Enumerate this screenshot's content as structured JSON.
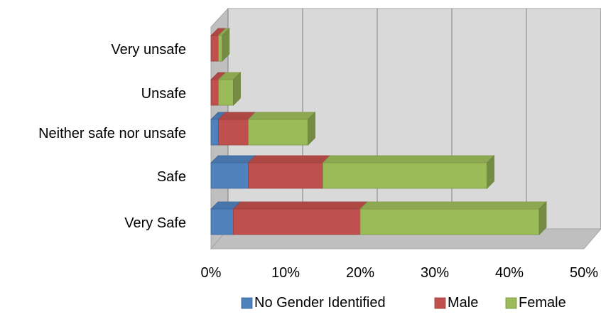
{
  "chart_data": {
    "type": "bar",
    "orientation": "horizontal",
    "stacked": true,
    "three_d": true,
    "categories": [
      "Very Safe",
      "Safe",
      "Neither safe nor unsafe",
      "Unsafe",
      "Very unsafe"
    ],
    "series": [
      {
        "name": "No Gender Identified",
        "values": [
          3,
          5,
          1,
          0,
          0
        ],
        "color": "#4F81BD"
      },
      {
        "name": "Male",
        "values": [
          17,
          10,
          4,
          1,
          1
        ],
        "color": "#C0504D"
      },
      {
        "name": "Female",
        "values": [
          24,
          22,
          8,
          2,
          0.5
        ],
        "color": "#9BBB59"
      }
    ],
    "xlim": [
      0,
      50
    ],
    "xticks": [
      "0%",
      "10%",
      "20%",
      "30%",
      "40%",
      "50%"
    ],
    "legend_position": "bottom",
    "grid": true,
    "title": "",
    "xlabel": "",
    "ylabel": ""
  }
}
